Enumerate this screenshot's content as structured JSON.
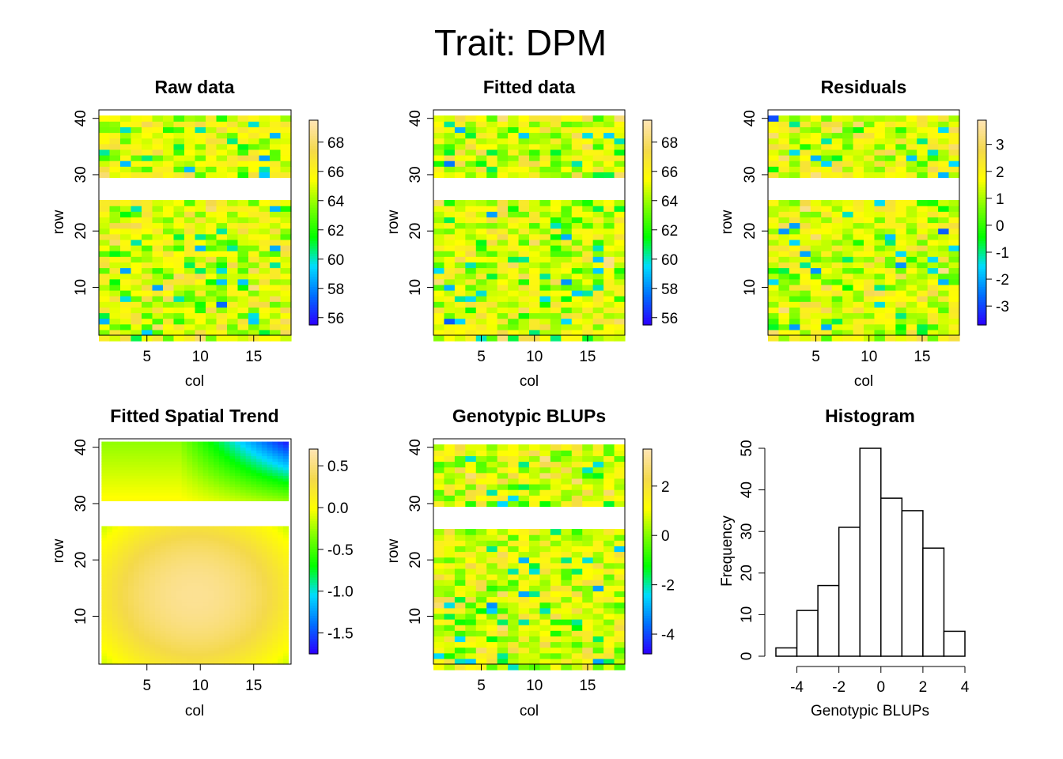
{
  "figure_title": "Trait: DPM",
  "colors": {
    "colormap": [
      "#2a00ff",
      "#0070ff",
      "#00dcff",
      "#00ff00",
      "#78ff00",
      "#ffff00",
      "#f4d94a",
      "#ffe4b0"
    ],
    "missing_band": "#ffffff",
    "histogram_fill": "#ffffff",
    "axis": "#000000"
  },
  "chart_data": [
    {
      "type": "heatmap",
      "title": "Raw data",
      "xlabel": "col",
      "ylabel": "row",
      "xlim": [
        0.5,
        18.5
      ],
      "ylim": [
        1.5,
        41.5
      ],
      "x_ticks": [
        5,
        10,
        15
      ],
      "y_ticks": [
        10,
        20,
        30,
        40
      ],
      "grid_cols": 18,
      "grid_rows": 40,
      "missing_rows": [
        27,
        28,
        29,
        30
      ],
      "values_range": [
        55.5,
        69.5
      ],
      "colorbar_ticks": [
        56,
        58,
        60,
        62,
        64,
        66,
        68
      ],
      "colorbar_labels": [
        "56",
        "58",
        "60",
        "62",
        "64",
        "66",
        "68"
      ]
    },
    {
      "type": "heatmap",
      "title": "Fitted data",
      "xlabel": "col",
      "ylabel": "row",
      "xlim": [
        0.5,
        18.5
      ],
      "ylim": [
        1.5,
        41.5
      ],
      "x_ticks": [
        5,
        10,
        15
      ],
      "y_ticks": [
        10,
        20,
        30,
        40
      ],
      "grid_cols": 18,
      "grid_rows": 40,
      "missing_rows": [
        27,
        28,
        29,
        30
      ],
      "values_range": [
        55.5,
        69.5
      ],
      "colorbar_ticks": [
        56,
        58,
        60,
        62,
        64,
        66,
        68
      ],
      "colorbar_labels": [
        "56",
        "58",
        "60",
        "62",
        "64",
        "66",
        "68"
      ]
    },
    {
      "type": "heatmap",
      "title": "Residuals",
      "xlabel": "col",
      "ylabel": "row",
      "xlim": [
        0.5,
        18.5
      ],
      "ylim": [
        1.5,
        41.5
      ],
      "x_ticks": [
        5,
        10,
        15
      ],
      "y_ticks": [
        10,
        20,
        30,
        40
      ],
      "grid_cols": 18,
      "grid_rows": 40,
      "missing_rows": [
        27,
        28,
        29,
        30
      ],
      "values_range": [
        -3.7,
        3.9
      ],
      "colorbar_ticks": [
        -3,
        -2,
        -1,
        0,
        1,
        2,
        3
      ],
      "colorbar_labels": [
        "-3",
        "-2",
        "-1",
        "0",
        "1",
        "2",
        "3"
      ]
    },
    {
      "type": "heatmap",
      "title": "Fitted Spatial Trend",
      "xlabel": "col",
      "ylabel": "row",
      "xlim": [
        0.5,
        18.5
      ],
      "ylim": [
        1.5,
        41.5
      ],
      "x_ticks": [
        5,
        10,
        15
      ],
      "y_ticks": [
        10,
        20,
        30,
        40
      ],
      "missing_rows": [
        27,
        28,
        29,
        30
      ],
      "values_range": [
        -1.75,
        0.7
      ],
      "colorbar_ticks": [
        0.5,
        0.0,
        -0.5,
        -1.0,
        -1.5
      ],
      "colorbar_labels": [
        "0.5",
        "0.0",
        "-0.5",
        "-1.0",
        "-1.5"
      ]
    },
    {
      "type": "heatmap",
      "title": "Genotypic BLUPs",
      "xlabel": "col",
      "ylabel": "row",
      "xlim": [
        0.5,
        18.5
      ],
      "ylim": [
        1.5,
        41.5
      ],
      "x_ticks": [
        5,
        10,
        15
      ],
      "y_ticks": [
        10,
        20,
        30,
        40
      ],
      "grid_cols": 18,
      "grid_rows": 40,
      "missing_rows": [
        27,
        28,
        29,
        30
      ],
      "values_range": [
        -4.8,
        3.5
      ],
      "colorbar_ticks": [
        2,
        0,
        -2,
        -4
      ],
      "colorbar_labels": [
        "2",
        "0",
        "-2",
        "-4"
      ]
    },
    {
      "type": "bar",
      "title": "Histogram",
      "xlabel": "Genotypic BLUPs",
      "ylabel": "Frequency",
      "bin_edges": [
        -5,
        -4,
        -3,
        -2,
        -1,
        0,
        1,
        2,
        3,
        4
      ],
      "values": [
        2,
        11,
        17,
        31,
        50,
        38,
        35,
        26,
        6
      ],
      "xlim": [
        -5,
        4
      ],
      "ylim": [
        0,
        50
      ],
      "x_ticks": [
        -4,
        -2,
        0,
        2,
        4
      ],
      "y_ticks": [
        0,
        10,
        20,
        30,
        40,
        50
      ],
      "x_tick_labels": [
        "-4",
        "-2",
        "0",
        "2",
        "4"
      ],
      "y_tick_labels": [
        "0",
        "10",
        "20",
        "30",
        "40",
        "50"
      ]
    }
  ]
}
